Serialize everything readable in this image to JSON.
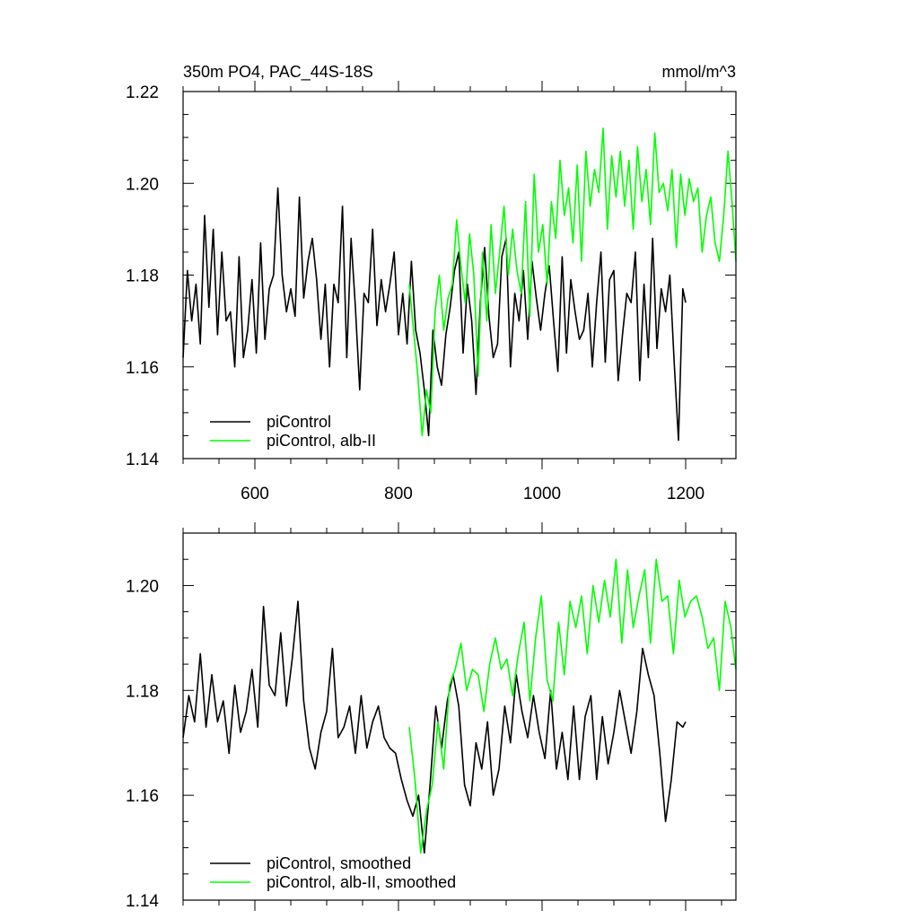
{
  "colors": {
    "black": "#000000",
    "green": "#00ff00"
  },
  "chart_data": [
    {
      "type": "line",
      "title": "350m PO4, PAC_44S-18S",
      "units": "mmol/m^3",
      "xlim": [
        500,
        1270
      ],
      "ylim": [
        1.14,
        1.22
      ],
      "xticks": [
        600,
        800,
        1000,
        1200
      ],
      "xtick_labels": [
        "600",
        "800",
        "1000",
        "1200"
      ],
      "yticks": [
        1.14,
        1.16,
        1.18,
        1.2,
        1.22
      ],
      "ytick_labels": [
        "1.14",
        "1.16",
        "1.18",
        "1.20",
        "1.22"
      ],
      "legend_position": "bottom-left",
      "series": [
        {
          "name": "piControl",
          "color": "#000000",
          "x": [
            500,
            506,
            512,
            518,
            524,
            530,
            536,
            542,
            548,
            554,
            560,
            566,
            572,
            578,
            584,
            590,
            596,
            602,
            608,
            614,
            620,
            626,
            632,
            638,
            644,
            650,
            656,
            662,
            668,
            674,
            680,
            686,
            692,
            698,
            704,
            710,
            716,
            722,
            728,
            734,
            740,
            746,
            752,
            758,
            764,
            770,
            776,
            782,
            788,
            794,
            800,
            806,
            812,
            818,
            824,
            830,
            836,
            842,
            848,
            854,
            860,
            866,
            872,
            878,
            884,
            890,
            896,
            902,
            908,
            914,
            920,
            926,
            932,
            938,
            944,
            950,
            956,
            962,
            968,
            974,
            980,
            986,
            992,
            998,
            1004,
            1010,
            1016,
            1022,
            1028,
            1034,
            1040,
            1046,
            1052,
            1058,
            1064,
            1070,
            1076,
            1082,
            1088,
            1094,
            1100,
            1106,
            1112,
            1118,
            1124,
            1130,
            1136,
            1142,
            1148,
            1154,
            1160,
            1166,
            1172,
            1178,
            1184,
            1190,
            1196,
            1200
          ],
          "values": [
            1.162,
            1.181,
            1.17,
            1.178,
            1.165,
            1.193,
            1.173,
            1.19,
            1.167,
            1.185,
            1.17,
            1.172,
            1.16,
            1.184,
            1.162,
            1.168,
            1.179,
            1.163,
            1.187,
            1.166,
            1.177,
            1.18,
            1.199,
            1.18,
            1.172,
            1.177,
            1.171,
            1.197,
            1.175,
            1.183,
            1.188,
            1.179,
            1.166,
            1.178,
            1.16,
            1.178,
            1.174,
            1.195,
            1.162,
            1.188,
            1.173,
            1.155,
            1.176,
            1.174,
            1.19,
            1.169,
            1.179,
            1.172,
            1.178,
            1.185,
            1.167,
            1.176,
            1.165,
            1.183,
            1.168,
            1.163,
            1.155,
            1.145,
            1.168,
            1.16,
            1.156,
            1.167,
            1.173,
            1.181,
            1.185,
            1.163,
            1.178,
            1.17,
            1.154,
            1.174,
            1.186,
            1.171,
            1.162,
            1.165,
            1.184,
            1.188,
            1.16,
            1.176,
            1.17,
            1.181,
            1.166,
            1.183,
            1.175,
            1.168,
            1.176,
            1.182,
            1.17,
            1.159,
            1.184,
            1.163,
            1.179,
            1.172,
            1.166,
            1.168,
            1.176,
            1.16,
            1.174,
            1.185,
            1.161,
            1.179,
            1.181,
            1.157,
            1.167,
            1.176,
            1.174,
            1.185,
            1.157,
            1.178,
            1.162,
            1.188,
            1.164,
            1.177,
            1.172,
            1.18,
            1.161,
            1.144,
            1.177,
            1.174
          ]
        },
        {
          "name": "piControl, alb-II",
          "color": "#00ff00",
          "x": [
            815,
            821,
            827,
            833,
            839,
            845,
            851,
            857,
            863,
            869,
            875,
            881,
            887,
            893,
            899,
            905,
            911,
            917,
            923,
            929,
            935,
            941,
            947,
            953,
            959,
            965,
            971,
            977,
            983,
            989,
            995,
            1001,
            1007,
            1013,
            1019,
            1025,
            1031,
            1037,
            1043,
            1049,
            1055,
            1061,
            1067,
            1073,
            1079,
            1085,
            1091,
            1097,
            1103,
            1109,
            1115,
            1121,
            1127,
            1133,
            1139,
            1145,
            1151,
            1157,
            1163,
            1169,
            1175,
            1181,
            1187,
            1193,
            1199,
            1205,
            1211,
            1217,
            1223,
            1229,
            1235,
            1241,
            1247,
            1253,
            1259,
            1265,
            1270
          ],
          "values": [
            1.178,
            1.168,
            1.158,
            1.145,
            1.155,
            1.15,
            1.172,
            1.18,
            1.168,
            1.175,
            1.178,
            1.192,
            1.182,
            1.174,
            1.189,
            1.18,
            1.158,
            1.185,
            1.17,
            1.191,
            1.176,
            1.185,
            1.195,
            1.18,
            1.19,
            1.181,
            1.176,
            1.196,
            1.171,
            1.202,
            1.185,
            1.191,
            1.178,
            1.196,
            1.188,
            1.205,
            1.193,
            1.199,
            1.187,
            1.204,
            1.183,
            1.207,
            1.195,
            1.203,
            1.198,
            1.212,
            1.19,
            1.206,
            1.197,
            1.207,
            1.195,
            1.205,
            1.19,
            1.208,
            1.196,
            1.203,
            1.191,
            1.211,
            1.198,
            1.2,
            1.194,
            1.203,
            1.186,
            1.202,
            1.193,
            1.201,
            1.196,
            1.199,
            1.185,
            1.193,
            1.197,
            1.187,
            1.183,
            1.193,
            1.207,
            1.195,
            1.183
          ]
        }
      ]
    },
    {
      "type": "line",
      "xlim": [
        500,
        1270
      ],
      "ylim": [
        1.14,
        1.21
      ],
      "yticks": [
        1.14,
        1.16,
        1.18,
        1.2
      ],
      "ytick_labels": [
        "1.14",
        "1.16",
        "1.18",
        "1.20"
      ],
      "legend_position": "bottom-left",
      "series": [
        {
          "name": "piControl, smoothed",
          "color": "#000000",
          "x": [
            500,
            508,
            516,
            524,
            532,
            540,
            548,
            556,
            564,
            572,
            580,
            588,
            596,
            604,
            612,
            620,
            628,
            636,
            644,
            652,
            660,
            668,
            676,
            684,
            692,
            700,
            708,
            716,
            724,
            732,
            740,
            748,
            756,
            764,
            772,
            780,
            788,
            796,
            804,
            812,
            820,
            828,
            836,
            844,
            852,
            860,
            868,
            876,
            884,
            892,
            900,
            908,
            916,
            924,
            932,
            940,
            948,
            956,
            964,
            972,
            980,
            988,
            996,
            1004,
            1012,
            1020,
            1028,
            1036,
            1044,
            1052,
            1060,
            1068,
            1076,
            1084,
            1092,
            1100,
            1108,
            1116,
            1124,
            1132,
            1140,
            1148,
            1156,
            1164,
            1172,
            1180,
            1188,
            1196,
            1200
          ],
          "values": [
            1.171,
            1.179,
            1.174,
            1.187,
            1.173,
            1.183,
            1.174,
            1.178,
            1.168,
            1.181,
            1.172,
            1.176,
            1.184,
            1.173,
            1.196,
            1.181,
            1.179,
            1.191,
            1.177,
            1.186,
            1.197,
            1.178,
            1.169,
            1.165,
            1.172,
            1.176,
            1.188,
            1.171,
            1.173,
            1.177,
            1.168,
            1.179,
            1.169,
            1.174,
            1.177,
            1.171,
            1.169,
            1.168,
            1.163,
            1.159,
            1.156,
            1.16,
            1.149,
            1.162,
            1.177,
            1.169,
            1.178,
            1.183,
            1.177,
            1.162,
            1.158,
            1.17,
            1.165,
            1.174,
            1.16,
            1.165,
            1.177,
            1.17,
            1.183,
            1.176,
            1.171,
            1.179,
            1.172,
            1.167,
            1.18,
            1.165,
            1.172,
            1.163,
            1.177,
            1.163,
            1.175,
            1.179,
            1.163,
            1.175,
            1.166,
            1.172,
            1.18,
            1.174,
            1.168,
            1.176,
            1.188,
            1.183,
            1.179,
            1.168,
            1.155,
            1.163,
            1.174,
            1.173,
            1.174
          ]
        },
        {
          "name": "piControl, alb-II, smoothed",
          "color": "#00ff00",
          "x": [
            815,
            823,
            831,
            839,
            847,
            855,
            863,
            871,
            879,
            887,
            895,
            903,
            911,
            919,
            927,
            935,
            943,
            951,
            959,
            967,
            975,
            983,
            991,
            999,
            1007,
            1015,
            1023,
            1031,
            1039,
            1047,
            1055,
            1063,
            1071,
            1079,
            1087,
            1095,
            1103,
            1111,
            1119,
            1127,
            1135,
            1143,
            1151,
            1159,
            1167,
            1175,
            1183,
            1191,
            1199,
            1207,
            1215,
            1223,
            1231,
            1239,
            1247,
            1255,
            1263,
            1270
          ],
          "values": [
            1.173,
            1.163,
            1.149,
            1.157,
            1.162,
            1.174,
            1.165,
            1.181,
            1.184,
            1.189,
            1.18,
            1.184,
            1.183,
            1.176,
            1.185,
            1.19,
            1.184,
            1.186,
            1.179,
            1.187,
            1.193,
            1.178,
            1.19,
            1.198,
            1.182,
            1.178,
            1.193,
            1.183,
            1.197,
            1.192,
            1.198,
            1.187,
            1.2,
            1.193,
            1.201,
            1.194,
            1.205,
            1.189,
            1.203,
            1.192,
            1.198,
            1.203,
            1.189,
            1.205,
            1.197,
            1.198,
            1.187,
            1.201,
            1.194,
            1.197,
            1.198,
            1.194,
            1.188,
            1.19,
            1.18,
            1.197,
            1.192,
            1.184
          ]
        }
      ]
    }
  ]
}
